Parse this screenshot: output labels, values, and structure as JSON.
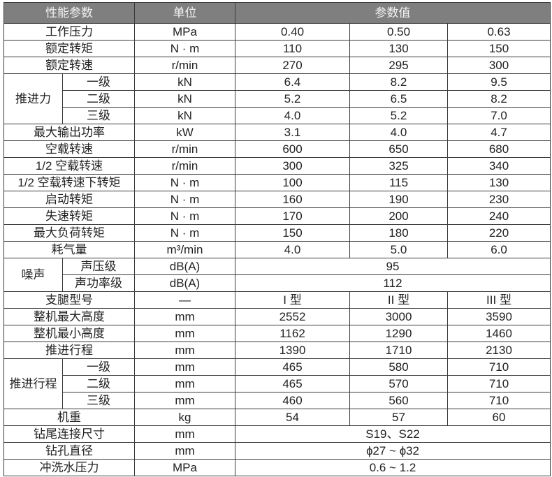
{
  "header": {
    "param": "性能参数",
    "unit": "单位",
    "values": "参数值"
  },
  "colors": {
    "header_bg": "#7f7f7f",
    "header_text": "#f2f2f2",
    "border": "#3a3a3a"
  },
  "rows": [
    {
      "label": "工作压力",
      "unit": "MPa",
      "values": [
        "0.40",
        "0.50",
        "0.63"
      ]
    },
    {
      "label": "额定转矩",
      "unit": "N · m",
      "values": [
        "110",
        "130",
        "150"
      ]
    },
    {
      "label": "额定转速",
      "unit": "r/min",
      "values": [
        "270",
        "295",
        "300"
      ]
    },
    {
      "group": "推进力",
      "label": "一级",
      "unit": "kN",
      "values": [
        "6.4",
        "8.2",
        "9.5"
      ]
    },
    {
      "group": "推进力",
      "label": "二级",
      "unit": "kN",
      "values": [
        "5.2",
        "6.5",
        "8.2"
      ]
    },
    {
      "group": "推进力",
      "label": "三级",
      "unit": "kN",
      "values": [
        "4.0",
        "5.2",
        "7.0"
      ]
    },
    {
      "label": "最大输出功率",
      "unit": "kW",
      "values": [
        "3.1",
        "4.0",
        "4.7"
      ]
    },
    {
      "label": "空载转速",
      "unit": "r/min",
      "values": [
        "600",
        "650",
        "680"
      ]
    },
    {
      "label": "1/2 空载转速",
      "unit": "r/min",
      "values": [
        "300",
        "325",
        "340"
      ]
    },
    {
      "label": "1/2 空载转速下转矩",
      "unit": "N · m",
      "values": [
        "100",
        "115",
        "130"
      ]
    },
    {
      "label": "启动转矩",
      "unit": "N · m",
      "values": [
        "160",
        "190",
        "230"
      ]
    },
    {
      "label": "失速转矩",
      "unit": "N · m",
      "values": [
        "170",
        "200",
        "240"
      ]
    },
    {
      "label": "最大负荷转矩",
      "unit": "N · m",
      "values": [
        "150",
        "180",
        "220"
      ]
    },
    {
      "label": "耗气量",
      "unit": "m³/min",
      "values": [
        "4.0",
        "5.0",
        "6.0"
      ]
    },
    {
      "group": "噪声",
      "label": "声压级",
      "unit": "dB(A)",
      "values": [
        "95"
      ]
    },
    {
      "group": "噪声",
      "label": "声功率级",
      "unit": "dB(A)",
      "values": [
        "112"
      ]
    },
    {
      "label": "支腿型号",
      "unit": "—",
      "values": [
        "I 型",
        "II 型",
        "III 型"
      ]
    },
    {
      "label": "整机最大高度",
      "unit": "mm",
      "values": [
        "2552",
        "3000",
        "3590"
      ]
    },
    {
      "label": "整机最小高度",
      "unit": "mm",
      "values": [
        "1162",
        "1290",
        "1460"
      ]
    },
    {
      "label": "推进行程",
      "unit": "mm",
      "values": [
        "1390",
        "1710",
        "2130"
      ]
    },
    {
      "group": "推进行程",
      "label": "一级",
      "unit": "mm",
      "values": [
        "465",
        "580",
        "710"
      ]
    },
    {
      "group": "推进行程",
      "label": "二级",
      "unit": "mm",
      "values": [
        "465",
        "570",
        "710"
      ]
    },
    {
      "group": "推进行程",
      "label": "三级",
      "unit": "mm",
      "values": [
        "460",
        "560",
        "710"
      ]
    },
    {
      "label": "机重",
      "unit": "kg",
      "values": [
        "54",
        "57",
        "60"
      ]
    },
    {
      "label": "钻尾连接尺寸",
      "unit": "mm",
      "values": [
        "S19、S22"
      ]
    },
    {
      "label": "钻孔直径",
      "unit": "mm",
      "values": [
        "ɸ27 ~ ɸ32"
      ]
    },
    {
      "label": "冲洗水压力",
      "unit": "MPa",
      "values": [
        "0.6 ~ 1.2"
      ]
    }
  ]
}
